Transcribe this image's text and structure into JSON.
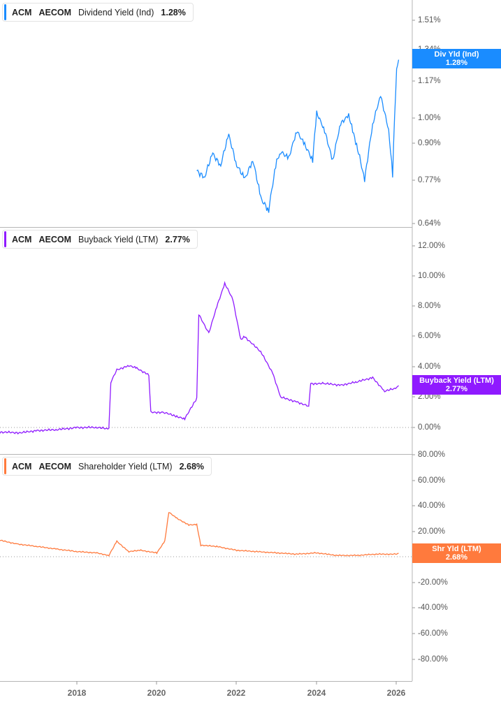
{
  "panels": [
    {
      "ticker": "ACM",
      "company": "AECOM",
      "metric": "Dividend Yield (Ind)",
      "value": "1.28%",
      "color": "#1a8cff",
      "badge_label": "Div Yld (Ind)",
      "badge_value": "1.28%",
      "y_ticks": [
        "1.51%",
        "1.34%",
        "1.17%",
        "1.00%",
        "0.90%",
        "0.77%",
        "0.64%"
      ]
    },
    {
      "ticker": "ACM",
      "company": "AECOM",
      "metric": "Buyback Yield (LTM)",
      "value": "2.77%",
      "color": "#8f1aff",
      "badge_label": "Buyback Yield (LTM)",
      "badge_value": "2.77%",
      "y_ticks": [
        "12.00%",
        "10.00%",
        "8.00%",
        "6.00%",
        "4.00%",
        "2.00%",
        "0.00%"
      ]
    },
    {
      "ticker": "ACM",
      "company": "AECOM",
      "metric": "Shareholder Yield (LTM)",
      "value": "2.68%",
      "color": "#ff7a3d",
      "badge_label": "Shr Yld (LTM)",
      "badge_value": "2.68%",
      "y_ticks": [
        "80.00%",
        "60.00%",
        "40.00%",
        "20.00%",
        "0.00%",
        "-20.00%",
        "-40.00%",
        "-60.00%",
        "-80.00%"
      ]
    }
  ],
  "x_axis": {
    "ticks": [
      "2018",
      "2020",
      "2022",
      "2024",
      "2026"
    ]
  },
  "chart_data": [
    {
      "type": "line",
      "title": "ACM AECOM Dividend Yield (Ind) 1.28%",
      "xlabel": "",
      "ylabel": "",
      "ylim": [
        0.64,
        1.55
      ],
      "y_scale": "log",
      "grid": false,
      "legend_position": "top-left",
      "x": [
        2021.0,
        2021.2,
        2021.4,
        2021.6,
        2021.8,
        2022.0,
        2022.2,
        2022.4,
        2022.6,
        2022.8,
        2023.0,
        2023.1,
        2023.3,
        2023.5,
        2023.7,
        2023.9,
        2024.0,
        2024.2,
        2024.4,
        2024.6,
        2024.8,
        2024.9,
        2025.0,
        2025.2,
        2025.4,
        2025.6,
        2025.8,
        2025.9,
        2026.0,
        2026.05
      ],
      "values": [
        0.8,
        0.78,
        0.86,
        0.82,
        0.93,
        0.82,
        0.77,
        0.84,
        0.71,
        0.68,
        0.83,
        0.87,
        0.84,
        0.95,
        0.89,
        0.84,
        1.02,
        0.95,
        0.83,
        0.98,
        1.01,
        0.95,
        0.89,
        0.77,
        0.97,
        1.1,
        0.95,
        0.78,
        1.23,
        1.28
      ]
    },
    {
      "type": "line",
      "title": "ACM AECOM Buyback Yield (LTM) 2.77%",
      "xlabel": "",
      "ylabel": "",
      "ylim": [
        -1.0,
        12.5
      ],
      "grid": false,
      "reference_line": 0.0,
      "x": [
        2016.0,
        2016.6,
        2017.0,
        2017.5,
        2018.0,
        2018.5,
        2018.8,
        2018.85,
        2019.0,
        2019.3,
        2019.5,
        2019.8,
        2019.85,
        2020.2,
        2020.5,
        2020.7,
        2021.0,
        2021.05,
        2021.3,
        2021.5,
        2021.7,
        2021.9,
        2022.1,
        2022.2,
        2022.6,
        2022.9,
        2023.1,
        2023.5,
        2023.8,
        2023.85,
        2024.2,
        2024.6,
        2025.0,
        2025.4,
        2025.7,
        2026.0,
        2026.05
      ],
      "values": [
        -0.3,
        -0.35,
        -0.2,
        -0.15,
        0.0,
        0.0,
        -0.1,
        3.0,
        3.8,
        4.1,
        3.9,
        3.5,
        1.0,
        1.0,
        0.7,
        0.6,
        1.9,
        7.5,
        6.2,
        8.0,
        9.5,
        8.5,
        5.8,
        6.0,
        5.0,
        3.6,
        2.0,
        1.7,
        1.4,
        2.9,
        2.9,
        2.8,
        3.0,
        3.3,
        2.4,
        2.6,
        2.77
      ]
    },
    {
      "type": "line",
      "title": "ACM AECOM Shareholder Yield (LTM) 2.68%",
      "xlabel": "",
      "ylabel": "",
      "ylim": [
        -85,
        82
      ],
      "grid": false,
      "reference_line": 0.0,
      "x": [
        2016.0,
        2016.05,
        2016.5,
        2017.0,
        2017.5,
        2018.0,
        2018.5,
        2018.8,
        2019.0,
        2019.3,
        2019.6,
        2020.0,
        2020.2,
        2020.3,
        2020.5,
        2020.8,
        2021.0,
        2021.1,
        2021.5,
        2022.0,
        2022.5,
        2023.0,
        2023.5,
        2024.0,
        2024.5,
        2025.0,
        2025.5,
        2026.0,
        2026.05
      ],
      "values": [
        -80,
        13,
        10,
        8,
        6,
        4,
        3,
        1,
        12,
        4,
        5,
        3,
        12,
        35,
        30,
        25,
        25,
        9,
        8,
        5,
        4,
        3,
        2,
        3,
        1,
        1,
        2,
        2,
        2.68
      ]
    }
  ]
}
